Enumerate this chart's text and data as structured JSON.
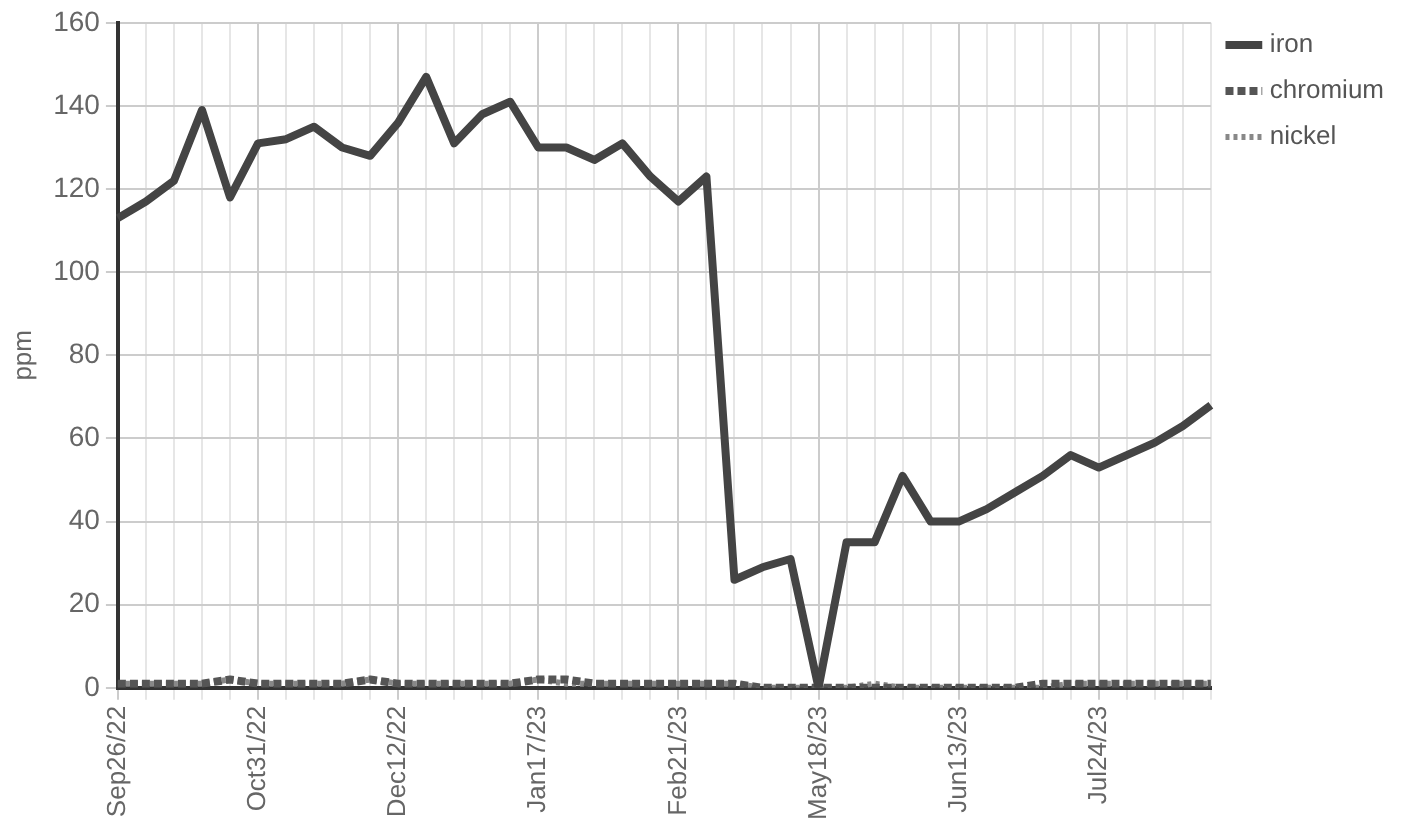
{
  "chart_data": {
    "type": "line",
    "ylabel": "ppm",
    "categories": [
      "Sep26/22",
      null,
      null,
      null,
      null,
      "Oct31/22",
      null,
      null,
      null,
      null,
      "Dec12/22",
      null,
      null,
      null,
      null,
      "Jan17/23",
      null,
      null,
      null,
      null,
      "Feb21/23",
      null,
      null,
      null,
      null,
      "May18/23",
      null,
      null,
      null,
      null,
      "Jun13/23",
      null,
      null,
      null,
      null,
      "Jul24/23",
      null,
      null,
      null,
      null
    ],
    "series": [
      {
        "name": "iron",
        "color": "#444444",
        "line_style": "solid",
        "values": [
          113,
          117,
          122,
          139,
          118,
          131,
          132,
          135,
          130,
          128,
          136,
          147,
          131,
          138,
          141,
          130,
          130,
          127,
          131,
          123,
          117,
          123,
          26,
          29,
          31,
          0,
          35,
          35,
          51,
          40,
          40,
          43,
          47,
          51,
          56,
          53,
          56,
          59,
          63,
          68
        ]
      },
      {
        "name": "chromium",
        "color": "#555555",
        "line_style": "dashed",
        "values": [
          1,
          1,
          1,
          1,
          2,
          1,
          1,
          1,
          1,
          2,
          1,
          1,
          1,
          1,
          1,
          2,
          2,
          1,
          1,
          1,
          1,
          1,
          1,
          0,
          0,
          0,
          0,
          0,
          0,
          0,
          0,
          0,
          0,
          1,
          1,
          1,
          1,
          1,
          1,
          1
        ]
      },
      {
        "name": "nickel",
        "color": "#888888",
        "line_style": "dotted",
        "values": [
          1,
          1,
          1,
          1,
          2,
          1,
          1,
          1,
          1,
          2,
          1,
          1,
          1,
          1,
          1,
          2,
          1,
          1,
          1,
          1,
          1,
          1,
          1,
          0,
          0,
          0,
          0,
          1,
          0,
          0,
          0,
          0,
          0,
          0,
          1,
          1,
          1,
          1,
          1,
          1
        ]
      }
    ],
    "ylim": [
      0,
      160
    ],
    "yticks": [
      0,
      20,
      40,
      60,
      80,
      100,
      120,
      140,
      160
    ],
    "grid": true,
    "legend": "top right",
    "marker": "none"
  }
}
